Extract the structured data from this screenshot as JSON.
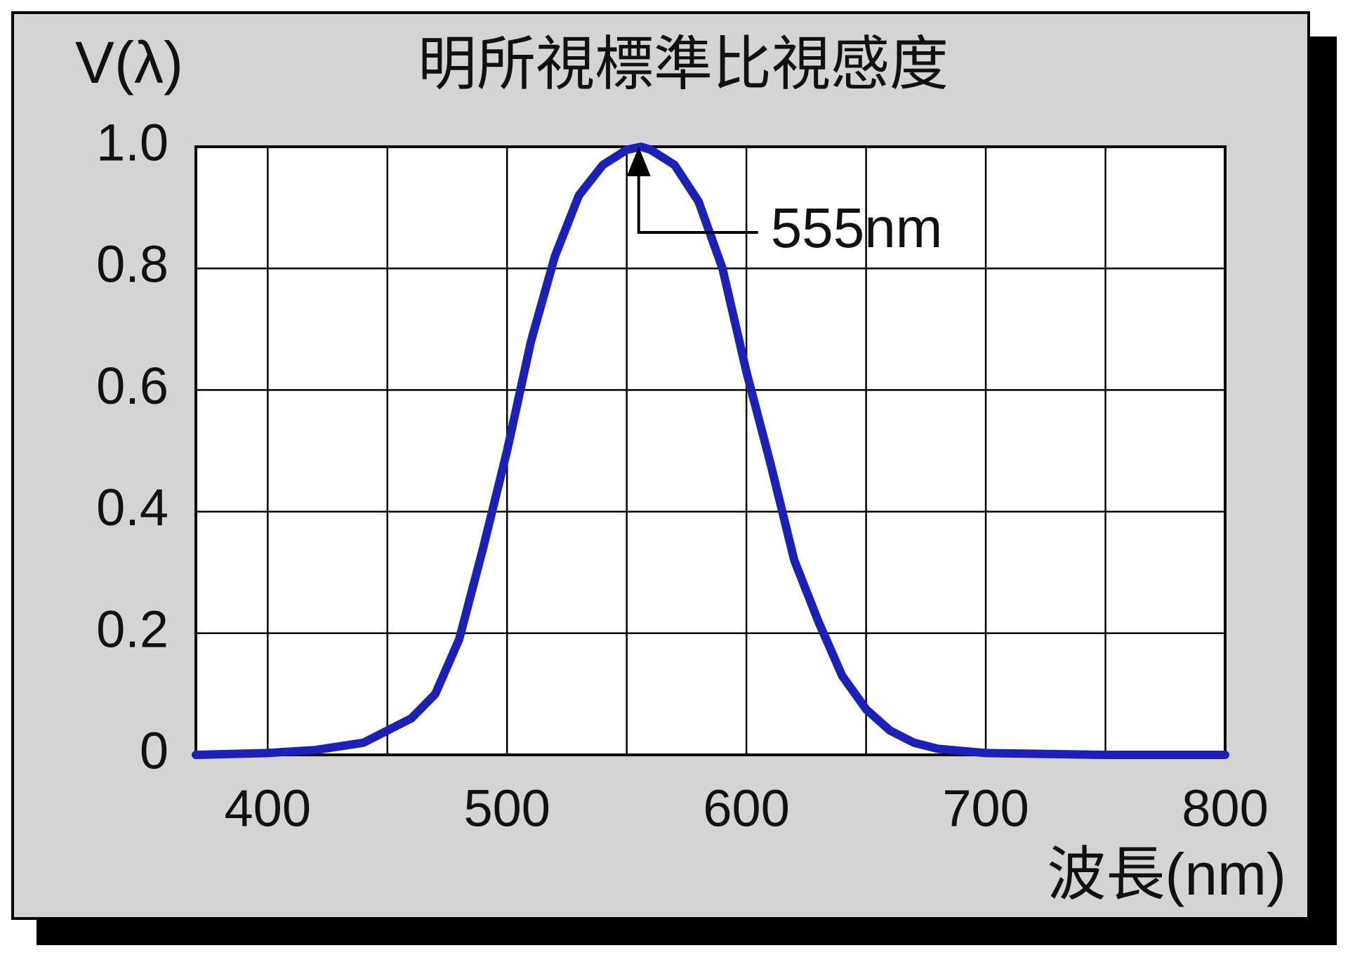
{
  "chart_data": {
    "type": "line",
    "title": "明所視標準比視感度",
    "y_label": "V(λ)",
    "x_label": "波長(nm)",
    "x": [
      370,
      400,
      420,
      440,
      460,
      470,
      480,
      490,
      500,
      510,
      520,
      530,
      540,
      550,
      556,
      560,
      570,
      580,
      590,
      600,
      610,
      620,
      630,
      640,
      650,
      660,
      670,
      680,
      700,
      750,
      800
    ],
    "series": [
      {
        "name": "V(λ)",
        "color": "#1c20b8",
        "values": [
          0,
          0.003,
          0.008,
          0.02,
          0.06,
          0.1,
          0.19,
          0.34,
          0.5,
          0.68,
          0.82,
          0.92,
          0.97,
          0.995,
          1.0,
          0.995,
          0.97,
          0.91,
          0.8,
          0.63,
          0.48,
          0.32,
          0.22,
          0.13,
          0.075,
          0.04,
          0.02,
          0.01,
          0.003,
          0,
          0
        ]
      }
    ],
    "xlim": [
      370,
      800
    ],
    "xticks": [
      400,
      500,
      600,
      700,
      800
    ],
    "xminor": [
      450,
      550,
      650,
      750
    ],
    "ylim": [
      0,
      1
    ],
    "yticks": [
      0,
      0.2,
      0.4,
      0.6,
      0.8,
      {
        "value": 1,
        "label": "1.0"
      }
    ],
    "grid": true,
    "annotations": [
      {
        "text": "555nm",
        "x": 555,
        "y": 1
      }
    ]
  }
}
